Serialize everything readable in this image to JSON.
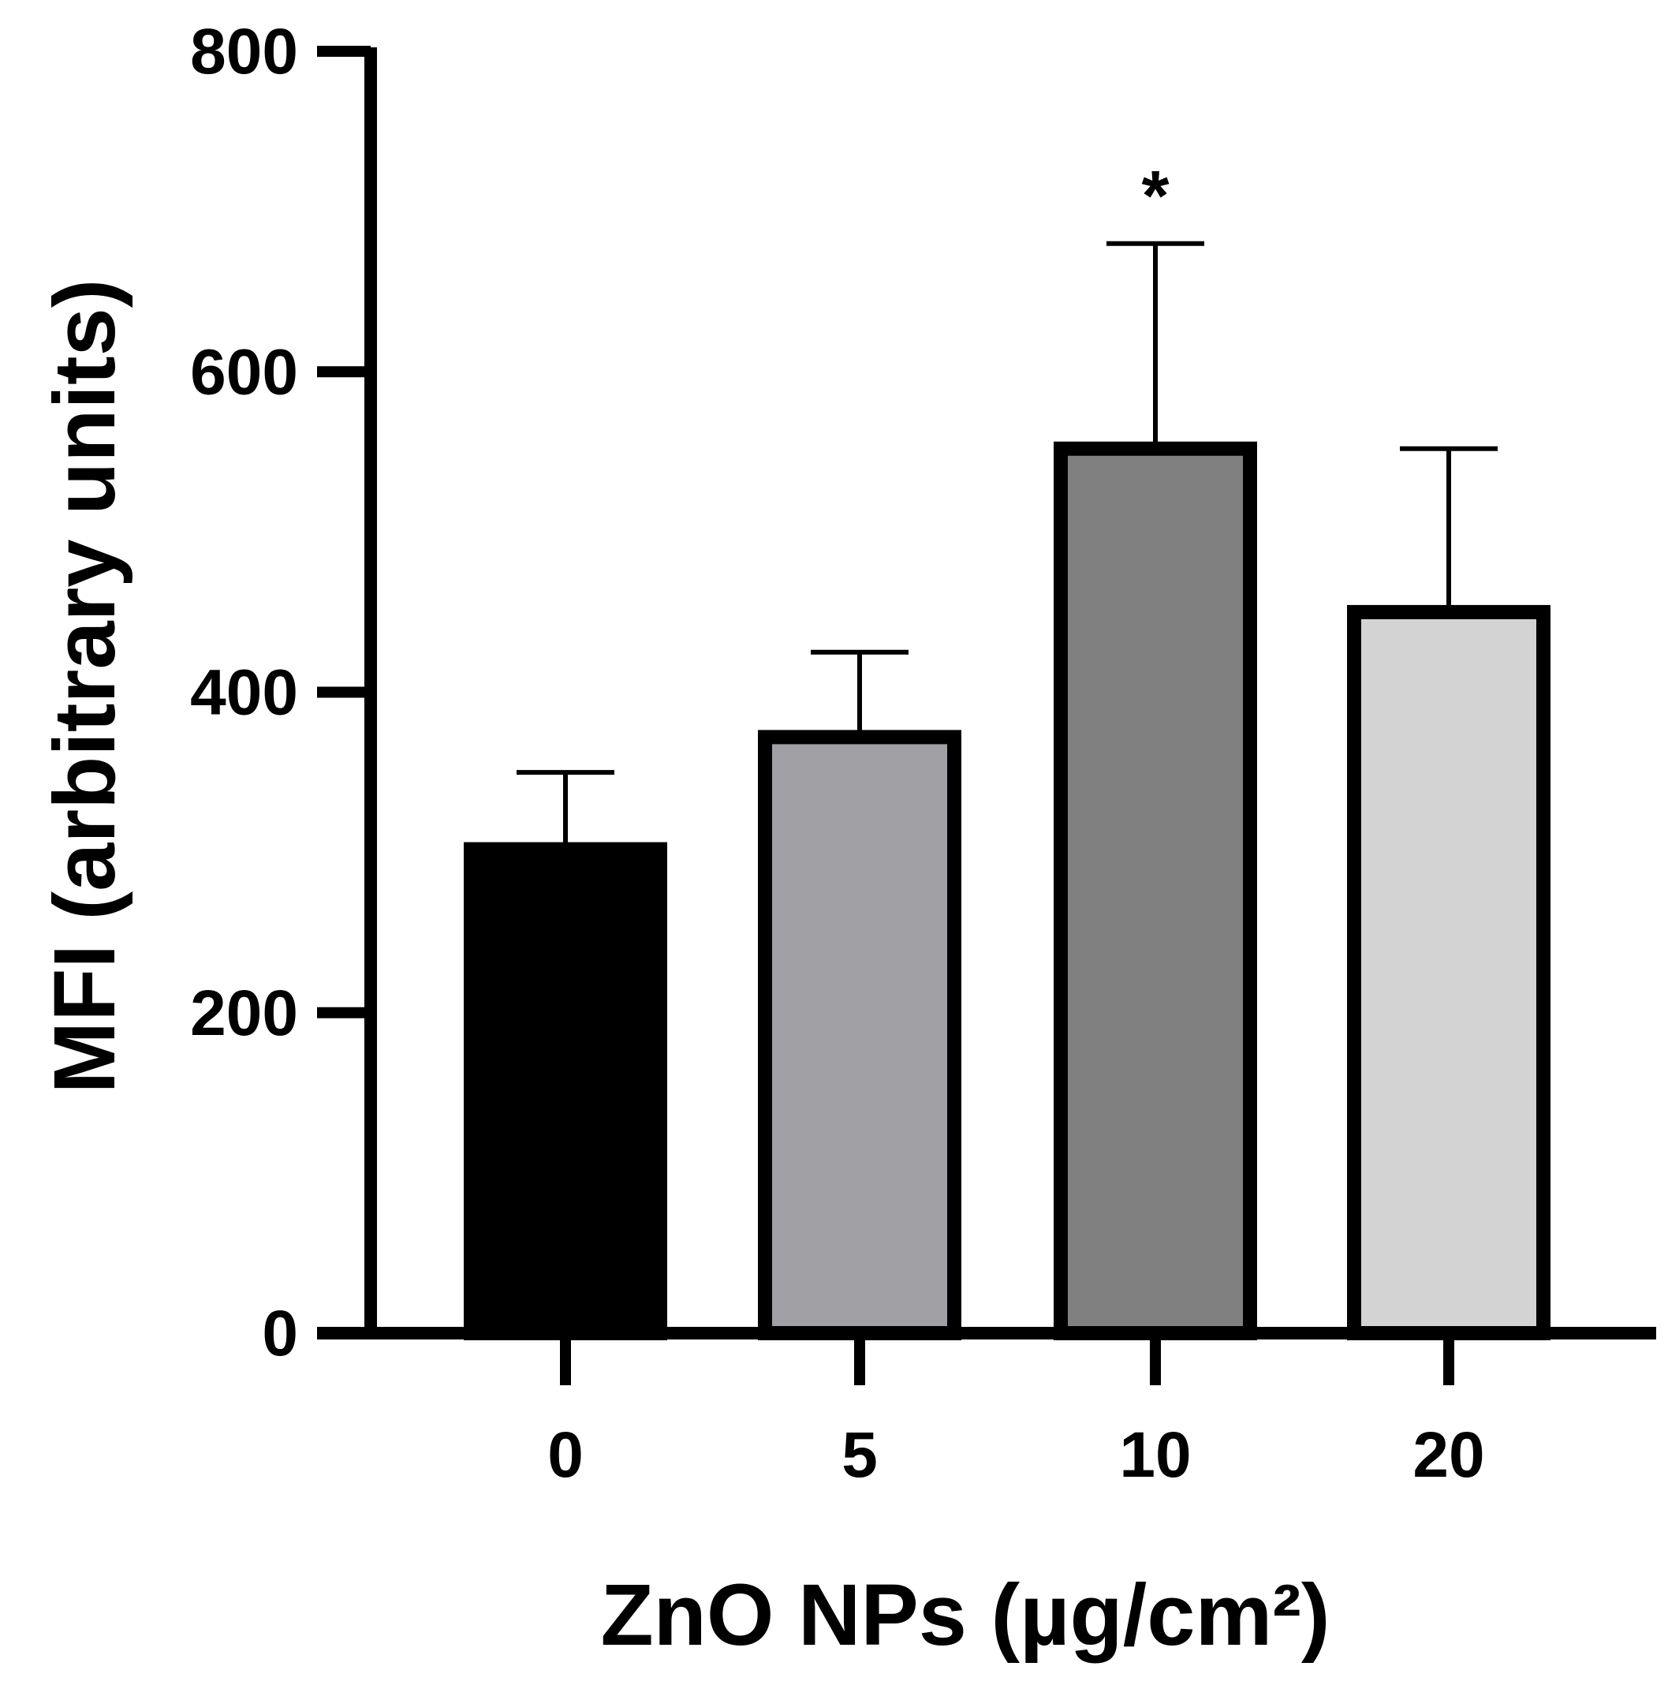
{
  "chart_data": {
    "type": "bar",
    "categories": [
      "0",
      "5",
      "10",
      "20"
    ],
    "values": [
      302,
      372,
      552,
      450
    ],
    "errors_upper": [
      350,
      425,
      680,
      552
    ],
    "colors": [
      "#000000",
      "#a0a0a5",
      "#808080",
      "#d3d3d3"
    ],
    "annotations": [
      "",
      "",
      "*",
      ""
    ],
    "ylim": [
      0,
      800
    ],
    "yticks": [
      "0",
      "200",
      "400",
      "600",
      "800"
    ],
    "xlabel": "ZnO NPs (µg/cm²)",
    "ylabel": "MFI (arbitrary units)",
    "grid": false
  }
}
